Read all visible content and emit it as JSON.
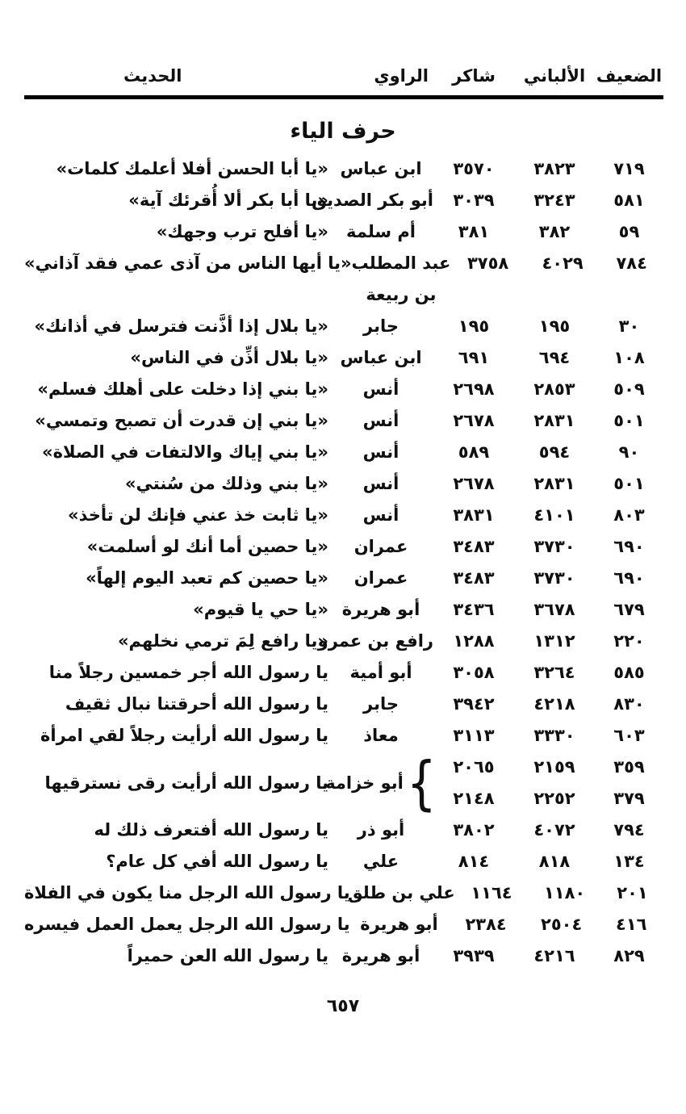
{
  "colors": {
    "text": "#101010",
    "background": "#ffffff",
    "rule": "#000000"
  },
  "header": {
    "col_daif": "الضعيف",
    "col_albani": "الألباني",
    "col_shakir": "شاكر",
    "col_rawi": "الراوي",
    "col_hadith": "الحديث"
  },
  "section_title": "حرف الياء",
  "rows": [
    {
      "daif": "٧١٩",
      "albani": "٣٨٢٣",
      "shakir": "٣٥٧٠",
      "narrator": "ابن عباس",
      "hadith": "«يا أبا الحسن أفلا أعلمك كلمات»"
    },
    {
      "daif": "٥٨١",
      "albani": "٣٢٤٣",
      "shakir": "٣٠٣٩",
      "narrator": "أبو بكر الصديق",
      "hadith": "«يا أبا بكر ألا أُقرئك آية»"
    },
    {
      "daif": "٥٩",
      "albani": "٣٨٢",
      "shakir": "٣٨١",
      "narrator": "أم سلمة",
      "hadith": "«يا أفلح ترب وجهك»"
    },
    {
      "daif": "٧٨٤",
      "albani": "٤٠٢٩",
      "shakir": "٣٧٥٨",
      "narrator": "عبد المطلب",
      "narrator2": "بن ربيعة",
      "hadith": "«يا أيها الناس من آذى عمي فقد آذاني»"
    },
    {
      "daif": "٣٠",
      "albani": "١٩٥",
      "shakir": "١٩٥",
      "narrator": "جابر",
      "hadith": "«يا بلال إذا أذَّنت فترسل في أذانك»"
    },
    {
      "daif": "١٠٨",
      "albani": "٦٩٤",
      "shakir": "٦٩١",
      "narrator": "ابن عباس",
      "hadith": "«يا بلال أذِّن في الناس»"
    },
    {
      "daif": "٥٠٩",
      "albani": "٢٨٥٣",
      "shakir": "٢٦٩٨",
      "narrator": "أنس",
      "hadith": "«يا بني إذا دخلت على أهلك فسلم»"
    },
    {
      "daif": "٥٠١",
      "albani": "٢٨٣١",
      "shakir": "٢٦٧٨",
      "narrator": "أنس",
      "hadith": "«يا بني إن قدرت أن تصبح وتمسي»"
    },
    {
      "daif": "٩٠",
      "albani": "٥٩٤",
      "shakir": "٥٨٩",
      "narrator": "أنس",
      "hadith": "«يا بني إياك والالتفات في الصلاة»"
    },
    {
      "daif": "٥٠١",
      "albani": "٢٨٣١",
      "shakir": "٢٦٧٨",
      "narrator": "أنس",
      "hadith": "«يا بني وذلك من سُنتي»"
    },
    {
      "daif": "٨٠٣",
      "albani": "٤١٠١",
      "shakir": "٣٨٣١",
      "narrator": "أنس",
      "hadith": "«يا ثابت خذ عني فإنك لن تأخذ»"
    },
    {
      "daif": "٦٩٠",
      "albani": "٣٧٣٠",
      "shakir": "٣٤٨٣",
      "narrator": "عمران",
      "hadith": "«يا حصين أما أنك لو أسلمت»"
    },
    {
      "daif": "٦٩٠",
      "albani": "٣٧٣٠",
      "shakir": "٣٤٨٣",
      "narrator": "عمران",
      "hadith": "«يا حصين كم تعبد اليوم إلهاً»"
    },
    {
      "daif": "٦٧٩",
      "albani": "٣٦٧٨",
      "shakir": "٣٤٣٦",
      "narrator": "أبو هريرة",
      "hadith": "«يا حي يا قيوم»"
    },
    {
      "daif": "٢٢٠",
      "albani": "١٣١٢",
      "shakir": "١٢٨٨",
      "narrator": "رافع بن عمرو",
      "hadith": "«يا رافع لِمَ ترمي نخلهم»"
    },
    {
      "daif": "٥٨٥",
      "albani": "٣٢٦٤",
      "shakir": "٣٠٥٨",
      "narrator": "أبو أمية",
      "hadith": "يا رسول الله أجر خمسين رجلاً منا"
    },
    {
      "daif": "٨٣٠",
      "albani": "٤٢١٨",
      "shakir": "٣٩٤٢",
      "narrator": "جابر",
      "hadith": "يا رسول الله أحرقتنا نبال ثقيف"
    },
    {
      "daif": "٦٠٣",
      "albani": "٣٣٣٠",
      "shakir": "٣١١٣",
      "narrator": "معاذ",
      "hadith": "يا رسول الله أرأيت رجلاً لقي امرأة"
    },
    {
      "type": "double",
      "daif": [
        "٣٥٩",
        "٣٧٩"
      ],
      "albani": [
        "٢١٥٩",
        "٢٢٥٢"
      ],
      "shakir": [
        "٢٠٦٥",
        "٢١٤٨"
      ],
      "narrator": "أبو خزامة",
      "hadith": "يا رسول الله أرأيت رقى نسترقيها"
    },
    {
      "daif": "٧٩٤",
      "albani": "٤٠٧٢",
      "shakir": "٣٨٠٢",
      "narrator": "أبو ذر",
      "hadith": "يا رسول الله أفتعرف ذلك له"
    },
    {
      "daif": "١٣٤",
      "albani": "٨١٨",
      "shakir": "٨١٤",
      "narrator": "علي",
      "hadith": "يا رسول الله أفي كل عام؟"
    },
    {
      "daif": "٢٠١",
      "albani": "١١٨٠",
      "shakir": "١١٦٤",
      "narrator": "علي بن طلق",
      "hadith": "يا رسول الله الرجل منا يكون في الفلاة"
    },
    {
      "daif": "٤١٦",
      "albani": "٢٥٠٤",
      "shakir": "٢٣٨٤",
      "narrator": "أبو هريرة",
      "hadith": "يا رسول الله الرجل يعمل العمل فيسره"
    },
    {
      "daif": "٨٢٩",
      "albani": "٤٢١٦",
      "shakir": "٣٩٣٩",
      "narrator": "أبو هريرة",
      "hadith": "يا رسول الله العن حميراً"
    }
  ],
  "page_number": "٦٥٧"
}
